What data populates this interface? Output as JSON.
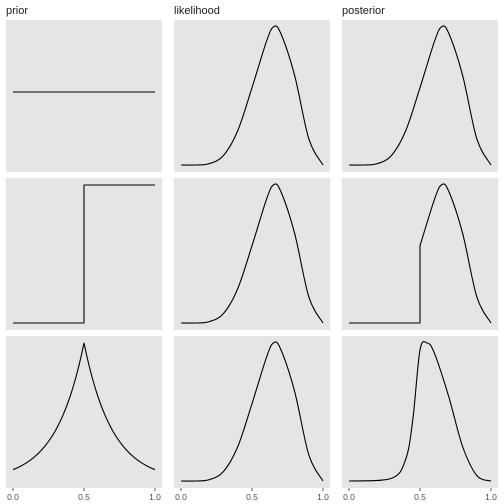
{
  "colors": {
    "panel_background": "#e5e5e5",
    "curve": "#000000",
    "tick_text": "#4d4d4d",
    "title_text": "#1a1a1a"
  },
  "chart_data": {
    "type": "line",
    "layout": "3x3 facet grid, columns share x axis",
    "columns": [
      "prior",
      "likelihood",
      "posterior"
    ],
    "x_ticks": [
      "0.0",
      "0.5",
      "1.0"
    ],
    "xlim": [
      0,
      1
    ],
    "ylim": "free per panel",
    "grid": false,
    "y_axis_labels_shown": false,
    "panels": [
      {
        "row": 1,
        "col": "prior",
        "x": [
          0,
          1
        ],
        "y": [
          1,
          1
        ],
        "note": "uniform"
      },
      {
        "row": 1,
        "col": "likelihood",
        "x": [
          0,
          0.1,
          0.2,
          0.3,
          0.4,
          0.5,
          0.6,
          0.65,
          0.7,
          0.8,
          0.9,
          1.0
        ],
        "y": [
          0,
          0.0,
          0.01,
          0.07,
          0.25,
          0.56,
          0.89,
          1.0,
          0.96,
          0.65,
          0.19,
          0
        ]
      },
      {
        "row": 1,
        "col": "posterior",
        "x": [
          0,
          0.1,
          0.2,
          0.3,
          0.4,
          0.5,
          0.6,
          0.65,
          0.7,
          0.8,
          0.9,
          1.0
        ],
        "y": [
          0,
          0.0,
          0.01,
          0.07,
          0.25,
          0.56,
          0.89,
          1.0,
          0.96,
          0.65,
          0.19,
          0
        ]
      },
      {
        "row": 2,
        "col": "prior",
        "x": [
          0,
          0.5,
          0.5,
          1
        ],
        "y": [
          0,
          0,
          1,
          1
        ],
        "note": "step at 0.5"
      },
      {
        "row": 2,
        "col": "likelihood",
        "x": [
          0,
          0.1,
          0.2,
          0.3,
          0.4,
          0.5,
          0.6,
          0.65,
          0.7,
          0.8,
          0.9,
          1.0
        ],
        "y": [
          0,
          0.0,
          0.01,
          0.07,
          0.25,
          0.56,
          0.89,
          1.0,
          0.96,
          0.65,
          0.19,
          0
        ]
      },
      {
        "row": 2,
        "col": "posterior",
        "x": [
          0,
          0.5,
          0.5,
          0.6,
          0.65,
          0.7,
          0.8,
          0.9,
          1.0
        ],
        "y": [
          0,
          0,
          0.56,
          0.89,
          1.0,
          0.96,
          0.65,
          0.19,
          0
        ],
        "note": "truncated likelihood, zero below 0.5"
      },
      {
        "row": 3,
        "col": "prior",
        "x": [
          0,
          0.1,
          0.2,
          0.3,
          0.4,
          0.5,
          0.6,
          0.7,
          0.8,
          0.9,
          1.0
        ],
        "y": [
          0.08,
          0.13,
          0.22,
          0.37,
          0.61,
          1.0,
          0.61,
          0.37,
          0.22,
          0.13,
          0.08
        ],
        "note": "peaked at 0.5"
      },
      {
        "row": 3,
        "col": "likelihood",
        "x": [
          0,
          0.1,
          0.2,
          0.3,
          0.4,
          0.5,
          0.6,
          0.65,
          0.7,
          0.8,
          0.9,
          1.0
        ],
        "y": [
          0,
          0.0,
          0.01,
          0.07,
          0.25,
          0.56,
          0.89,
          1.0,
          0.96,
          0.65,
          0.19,
          0
        ]
      },
      {
        "row": 3,
        "col": "posterior",
        "x": [
          0,
          0.3,
          0.4,
          0.45,
          0.5,
          0.55,
          0.6,
          0.7,
          0.8,
          0.9,
          1.0
        ],
        "y": [
          0,
          0.02,
          0.16,
          0.45,
          0.95,
          1.0,
          0.93,
          0.62,
          0.25,
          0.04,
          0
        ]
      }
    ]
  }
}
